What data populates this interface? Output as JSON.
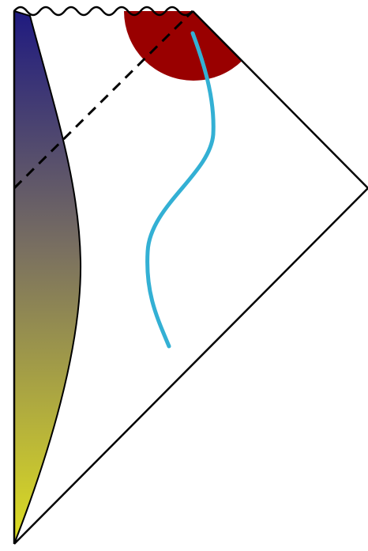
{
  "diagram": {
    "colors": {
      "background": "#ffffff",
      "outline": "#000000",
      "gradient_top": "#1f1a80",
      "gradient_middle": "#7a7060",
      "gradient_bottom": "#dede22",
      "red_region": "#990000",
      "worldline": "#33b0d4"
    },
    "styles": {
      "top_boundary": "wavy",
      "diagonal_line": "dashed"
    }
  }
}
